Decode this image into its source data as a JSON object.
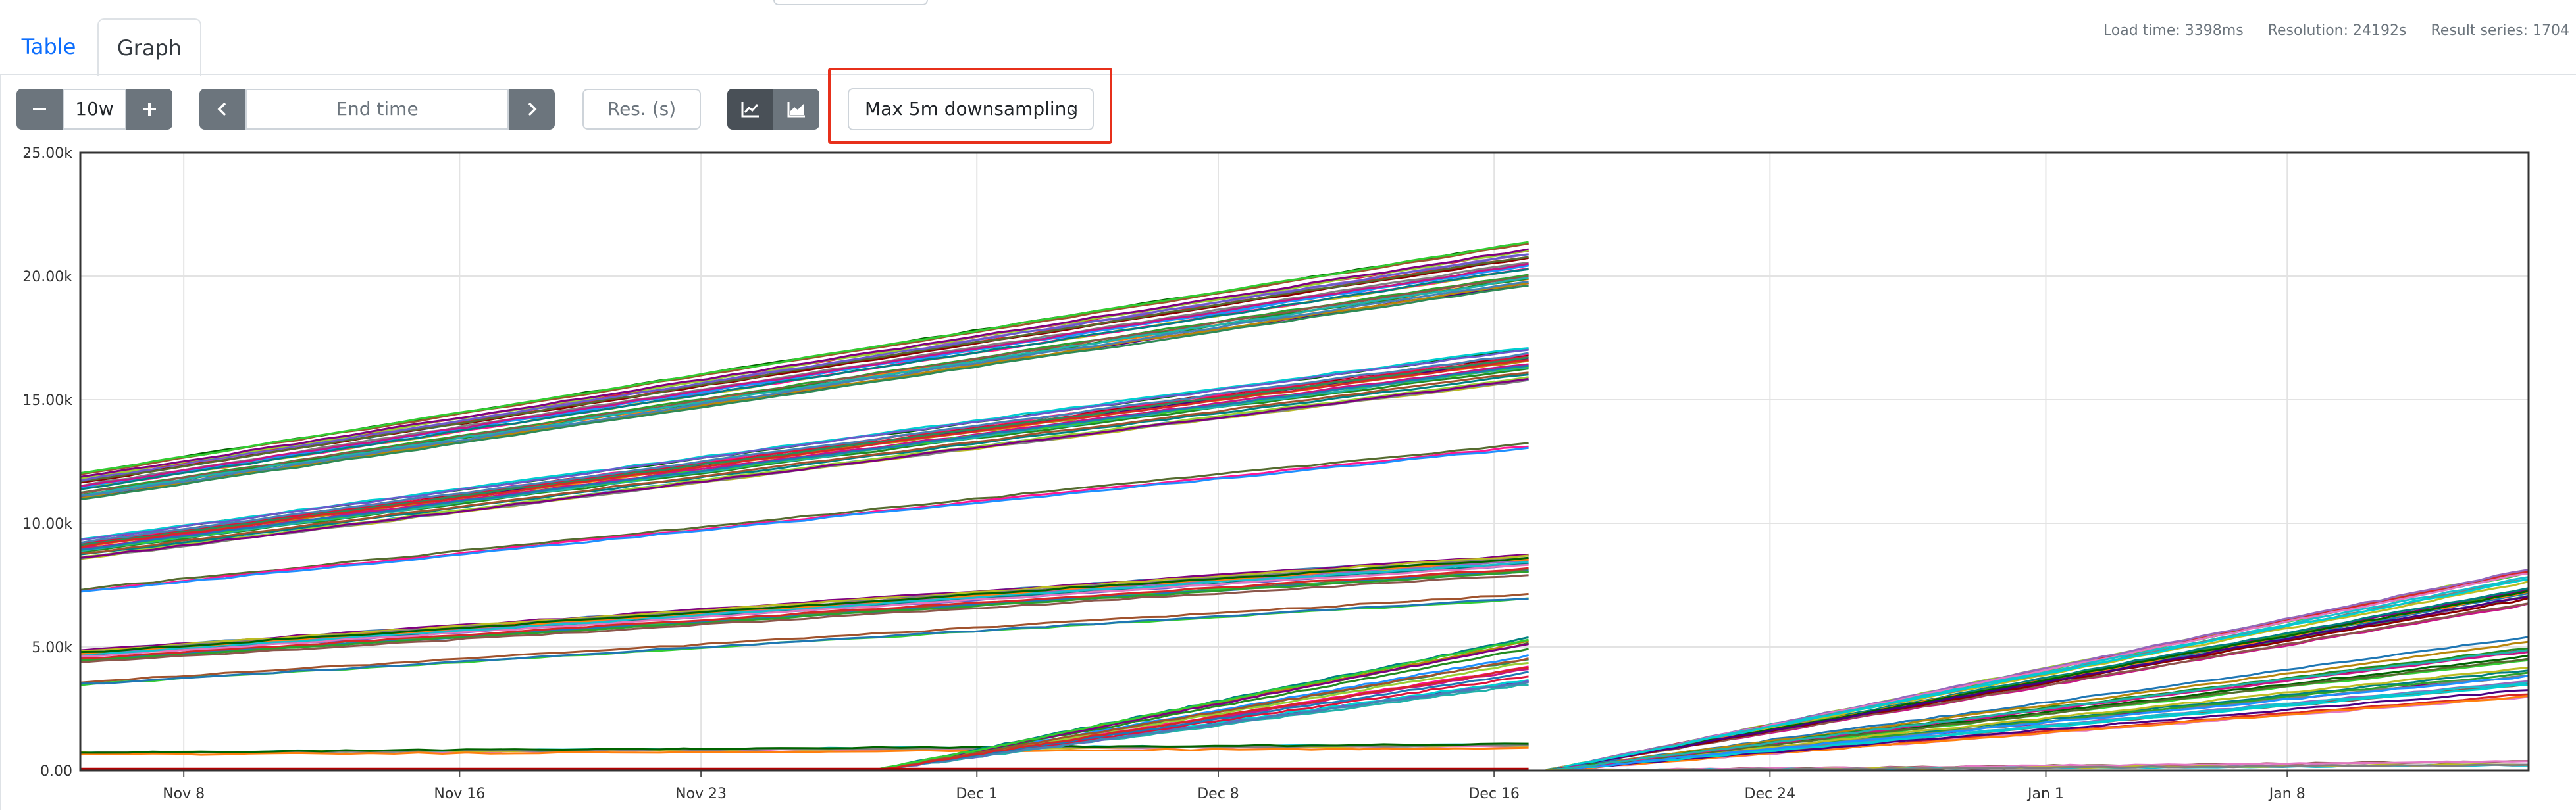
{
  "tabs": {
    "table": "Table",
    "graph": "Graph",
    "active": "graph"
  },
  "stats": {
    "load_time": "Load time: 3398ms",
    "resolution": "Resolution: 24192s",
    "result_series": "Result series: 1704"
  },
  "controls": {
    "range_value": "10w",
    "minus_icon": "minus-icon",
    "plus_icon": "plus-icon",
    "end_time_placeholder": "End time",
    "prev_icon": "chevron-left-icon",
    "next_icon": "chevron-right-icon",
    "resolution_placeholder": "Res. (s)",
    "line_mode_icon": "line-chart-icon",
    "stacked_mode_icon": "area-chart-icon",
    "downsampling_selected": "Max 5m downsampling",
    "downsampling_highlight_color": "#e7301b"
  },
  "chart_data": {
    "type": "line",
    "x_ticks": [
      "Nov 8",
      "Nov 16",
      "Nov 23",
      "Dec 1",
      "Dec 8",
      "Dec 16",
      "Dec 24",
      "Jan 1",
      "Jan 8"
    ],
    "y_ticks": [
      "0.00",
      "5.00k",
      "10.00k",
      "15.00k",
      "20.00k",
      "25.00k"
    ],
    "ylim": [
      0,
      25000
    ],
    "xlim": [
      "2023-11-05",
      "2024-01-15"
    ],
    "grid": true,
    "legend": "none",
    "gap": [
      "2023-12-17",
      "2023-12-17T12:00"
    ],
    "series_groups": [
      {
        "start": [
          "2023-11-05",
          11500
        ],
        "end": [
          "2023-12-17",
          20500
        ],
        "spread": 1800,
        "count": 30
      },
      {
        "start": [
          "2023-11-05",
          9000
        ],
        "end": [
          "2023-12-17",
          16500
        ],
        "spread": 1500,
        "count": 25
      },
      {
        "start": [
          "2023-11-05",
          7300
        ],
        "end": [
          "2023-12-17",
          13200
        ],
        "spread": 600,
        "count": 3
      },
      {
        "start": [
          "2023-11-05",
          4600
        ],
        "end": [
          "2023-12-17",
          8300
        ],
        "spread": 900,
        "count": 20
      },
      {
        "start": [
          "2023-11-05",
          3500
        ],
        "end": [
          "2023-12-17",
          7000
        ],
        "spread": 400,
        "count": 3
      },
      {
        "start": [
          "2023-11-05",
          700
        ],
        "end": [
          "2023-12-17",
          1000
        ],
        "spread": 200,
        "count": 6
      },
      {
        "start": [
          "2023-11-28",
          0
        ],
        "end": [
          "2023-12-17",
          4500
        ],
        "spread": 2200,
        "count": 20
      },
      {
        "start": [
          "2023-12-17T12:00",
          0
        ],
        "end": [
          "2024-01-15",
          7400
        ],
        "spread": 1500,
        "count": 25
      },
      {
        "start": [
          "2023-12-17T12:00",
          0
        ],
        "end": [
          "2024-01-15",
          4200
        ],
        "spread": 2500,
        "count": 25
      },
      {
        "start": [
          "2023-12-17T12:00",
          0
        ],
        "end": [
          "2024-01-15",
          300
        ],
        "spread": 200,
        "count": 6
      }
    ]
  }
}
